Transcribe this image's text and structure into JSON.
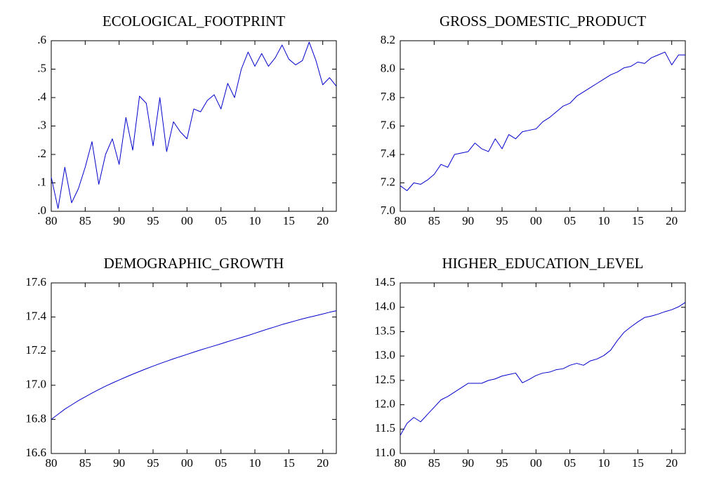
{
  "colors": {
    "line": "#0000cc",
    "axis": "#000000",
    "background": "#ffffff"
  },
  "chart_data": [
    {
      "type": "line",
      "title": "ECOLOGICAL_FOOTPRINT",
      "xlabel": "",
      "ylabel": "",
      "xlim": [
        1980,
        2022
      ],
      "ylim": [
        0.0,
        0.6
      ],
      "xticks": [
        1980,
        1985,
        1990,
        1995,
        2000,
        2005,
        2010,
        2015,
        2020
      ],
      "xtick_labels": [
        "80",
        "85",
        "90",
        "95",
        "00",
        "05",
        "10",
        "15",
        "20"
      ],
      "yticks": [
        0.0,
        0.1,
        0.2,
        0.3,
        0.4,
        0.5,
        0.6
      ],
      "ytick_labels": [
        ".0",
        ".1",
        ".2",
        ".3",
        ".4",
        ".5",
        ".6"
      ],
      "grid": false,
      "x": [
        1980,
        1981,
        1982,
        1983,
        1984,
        1985,
        1986,
        1987,
        1988,
        1989,
        1990,
        1991,
        1992,
        1993,
        1994,
        1995,
        1996,
        1997,
        1998,
        1999,
        2000,
        2001,
        2002,
        2003,
        2004,
        2005,
        2006,
        2007,
        2008,
        2009,
        2010,
        2011,
        2012,
        2013,
        2014,
        2015,
        2016,
        2017,
        2018,
        2019,
        2020,
        2021,
        2022
      ],
      "values": [
        0.12,
        0.01,
        0.155,
        0.03,
        0.08,
        0.155,
        0.245,
        0.095,
        0.2,
        0.255,
        0.165,
        0.33,
        0.215,
        0.405,
        0.38,
        0.23,
        0.4,
        0.21,
        0.315,
        0.28,
        0.255,
        0.36,
        0.35,
        0.39,
        0.41,
        0.36,
        0.45,
        0.4,
        0.5,
        0.56,
        0.51,
        0.555,
        0.51,
        0.54,
        0.585,
        0.535,
        0.515,
        0.53,
        0.595,
        0.53,
        0.445,
        0.47,
        0.44
      ]
    },
    {
      "type": "line",
      "title": "GROSS_DOMESTIC_PRODUCT",
      "xlabel": "",
      "ylabel": "",
      "xlim": [
        1980,
        2022
      ],
      "ylim": [
        7.0,
        8.2
      ],
      "xticks": [
        1980,
        1985,
        1990,
        1995,
        2000,
        2005,
        2010,
        2015,
        2020
      ],
      "xtick_labels": [
        "80",
        "85",
        "90",
        "95",
        "00",
        "05",
        "10",
        "15",
        "20"
      ],
      "yticks": [
        7.0,
        7.2,
        7.4,
        7.6,
        7.8,
        8.0,
        8.2
      ],
      "ytick_labels": [
        "7.0",
        "7.2",
        "7.4",
        "7.6",
        "7.8",
        "8.0",
        "8.2"
      ],
      "grid": false,
      "x": [
        1980,
        1981,
        1982,
        1983,
        1984,
        1985,
        1986,
        1987,
        1988,
        1989,
        1990,
        1991,
        1992,
        1993,
        1994,
        1995,
        1996,
        1997,
        1998,
        1999,
        2000,
        2001,
        2002,
        2003,
        2004,
        2005,
        2006,
        2007,
        2008,
        2009,
        2010,
        2011,
        2012,
        2013,
        2014,
        2015,
        2016,
        2017,
        2018,
        2019,
        2020,
        2021,
        2022
      ],
      "values": [
        7.18,
        7.145,
        7.2,
        7.19,
        7.22,
        7.26,
        7.33,
        7.31,
        7.4,
        7.41,
        7.42,
        7.48,
        7.44,
        7.42,
        7.51,
        7.44,
        7.54,
        7.51,
        7.56,
        7.57,
        7.58,
        7.63,
        7.66,
        7.7,
        7.74,
        7.76,
        7.81,
        7.84,
        7.87,
        7.9,
        7.93,
        7.96,
        7.98,
        8.01,
        8.02,
        8.05,
        8.04,
        8.08,
        8.1,
        8.12,
        8.03,
        8.1,
        8.1
      ]
    },
    {
      "type": "line",
      "title": "DEMOGRAPHIC_GROWTH",
      "xlabel": "",
      "ylabel": "",
      "xlim": [
        1980,
        2022
      ],
      "ylim": [
        16.6,
        17.6
      ],
      "xticks": [
        1980,
        1985,
        1990,
        1995,
        2000,
        2005,
        2010,
        2015,
        2020
      ],
      "xtick_labels": [
        "80",
        "85",
        "90",
        "95",
        "00",
        "05",
        "10",
        "15",
        "20"
      ],
      "yticks": [
        16.6,
        16.8,
        17.0,
        17.2,
        17.4,
        17.6
      ],
      "ytick_labels": [
        "16.6",
        "16.8",
        "17.0",
        "17.2",
        "17.4",
        "17.6"
      ],
      "grid": false,
      "x": [
        1980,
        1981,
        1982,
        1983,
        1984,
        1985,
        1986,
        1987,
        1988,
        1989,
        1990,
        1991,
        1992,
        1993,
        1994,
        1995,
        1996,
        1997,
        1998,
        1999,
        2000,
        2001,
        2002,
        2003,
        2004,
        2005,
        2006,
        2007,
        2008,
        2009,
        2010,
        2011,
        2012,
        2013,
        2014,
        2015,
        2016,
        2017,
        2018,
        2019,
        2020,
        2021,
        2022
      ],
      "values": [
        16.8,
        16.83,
        16.86,
        16.885,
        16.91,
        16.932,
        16.954,
        16.975,
        16.995,
        17.013,
        17.031,
        17.048,
        17.065,
        17.081,
        17.097,
        17.112,
        17.127,
        17.141,
        17.155,
        17.168,
        17.181,
        17.194,
        17.207,
        17.219,
        17.231,
        17.243,
        17.256,
        17.268,
        17.28,
        17.292,
        17.305,
        17.318,
        17.331,
        17.343,
        17.356,
        17.367,
        17.378,
        17.389,
        17.399,
        17.408,
        17.418,
        17.428,
        17.437
      ]
    },
    {
      "type": "line",
      "title": "HIGHER_EDUCATION_LEVEL",
      "xlabel": "",
      "ylabel": "",
      "xlim": [
        1980,
        2022
      ],
      "ylim": [
        11.0,
        14.5
      ],
      "xticks": [
        1980,
        1985,
        1990,
        1995,
        2000,
        2005,
        2010,
        2015,
        2020
      ],
      "xtick_labels": [
        "80",
        "85",
        "90",
        "95",
        "00",
        "05",
        "10",
        "15",
        "20"
      ],
      "yticks": [
        11.0,
        11.5,
        12.0,
        12.5,
        13.0,
        13.5,
        14.0,
        14.5
      ],
      "ytick_labels": [
        "11.0",
        "11.5",
        "12.0",
        "12.5",
        "13.0",
        "13.5",
        "14.0",
        "14.5"
      ],
      "grid": false,
      "x": [
        1980,
        1981,
        1982,
        1983,
        1984,
        1985,
        1986,
        1987,
        1988,
        1989,
        1990,
        1991,
        1992,
        1993,
        1994,
        1995,
        1996,
        1997,
        1998,
        1999,
        2000,
        2001,
        2002,
        2003,
        2004,
        2005,
        2006,
        2007,
        2008,
        2009,
        2010,
        2011,
        2012,
        2013,
        2014,
        2015,
        2016,
        2017,
        2018,
        2019,
        2020,
        2021,
        2022
      ],
      "values": [
        11.37,
        11.62,
        11.74,
        11.65,
        11.8,
        11.95,
        12.1,
        12.17,
        12.26,
        12.35,
        12.44,
        12.44,
        12.44,
        12.5,
        12.53,
        12.59,
        12.62,
        12.65,
        12.45,
        12.52,
        12.6,
        12.65,
        12.67,
        12.72,
        12.74,
        12.81,
        12.85,
        12.81,
        12.9,
        12.94,
        13.01,
        13.12,
        13.32,
        13.49,
        13.6,
        13.7,
        13.79,
        13.82,
        13.86,
        13.91,
        13.95,
        14.01,
        14.1
      ]
    }
  ]
}
